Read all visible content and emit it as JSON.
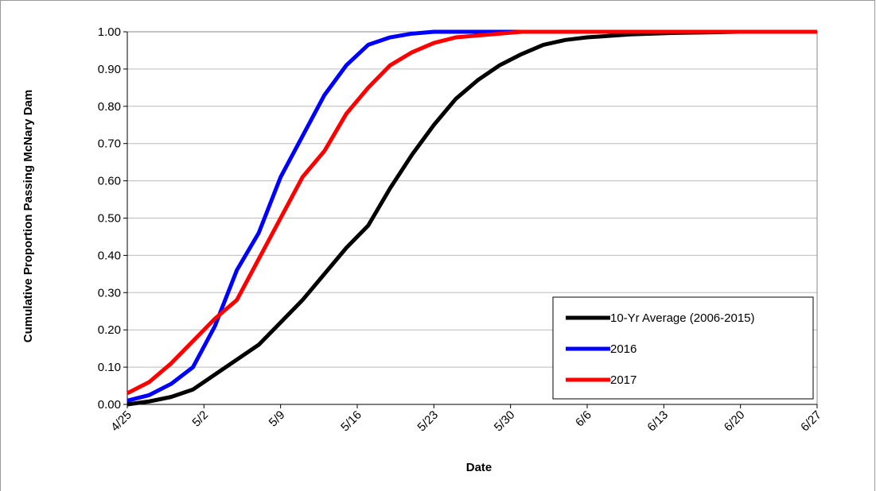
{
  "chart_data": {
    "type": "line",
    "x_label": "Date",
    "y_label": "Cumulative Proportion Passing McNary Dam",
    "x": [
      "4/25",
      "4/27",
      "4/29",
      "5/1",
      "5/3",
      "5/5",
      "5/7",
      "5/9",
      "5/11",
      "5/13",
      "5/15",
      "5/17",
      "5/19",
      "5/21",
      "5/23",
      "5/25",
      "5/27",
      "5/29",
      "5/31",
      "6/2",
      "6/4",
      "6/6",
      "6/10",
      "6/14",
      "6/20",
      "6/27"
    ],
    "series": [
      {
        "name": "10-Yr Average (2006-2015)",
        "color": "#000000",
        "values": [
          0,
          0.008,
          0.02,
          0.04,
          0.08,
          0.12,
          0.16,
          0.22,
          0.28,
          0.35,
          0.42,
          0.48,
          0.58,
          0.67,
          0.75,
          0.82,
          0.87,
          0.91,
          0.94,
          0.965,
          0.978,
          0.985,
          0.993,
          0.997,
          1.0,
          1.0
        ]
      },
      {
        "name": "2016",
        "color": "#0000ff",
        "values": [
          0.01,
          0.025,
          0.055,
          0.1,
          0.21,
          0.36,
          0.46,
          0.61,
          0.72,
          0.83,
          0.91,
          0.965,
          0.985,
          0.995,
          1,
          1,
          1,
          1,
          1,
          1,
          1,
          1,
          1,
          1,
          1,
          1
        ]
      },
      {
        "name": "2017",
        "color": "#ff0000",
        "values": [
          0.03,
          0.06,
          0.11,
          0.17,
          0.23,
          0.28,
          0.39,
          0.5,
          0.61,
          0.68,
          0.78,
          0.85,
          0.91,
          0.945,
          0.97,
          0.985,
          0.99,
          0.995,
          1,
          1,
          1,
          1,
          1,
          1,
          1,
          1
        ]
      }
    ],
    "xlim": [
      "4/25",
      "6/27"
    ],
    "xticks": [
      "4/25",
      "5/2",
      "5/9",
      "5/16",
      "5/23",
      "5/30",
      "6/6",
      "6/13",
      "6/20",
      "6/27"
    ],
    "ylim": [
      0,
      1
    ],
    "yticks": [
      {
        "value": 0,
        "label": "0.00"
      },
      {
        "value": 0.1,
        "label": "0.10"
      },
      {
        "value": 0.2,
        "label": "0.20"
      },
      {
        "value": 0.3,
        "label": "0.30"
      },
      {
        "value": 0.4,
        "label": "0.40"
      },
      {
        "value": 0.5,
        "label": "0.50"
      },
      {
        "value": 0.6,
        "label": "0.60"
      },
      {
        "value": 0.7,
        "label": "0.70"
      },
      {
        "value": 0.8,
        "label": "0.80"
      },
      {
        "value": 0.9,
        "label": "0.90"
      },
      {
        "value": 1,
        "label": "1.00"
      }
    ],
    "grid": true,
    "legend_position": "lower right"
  }
}
